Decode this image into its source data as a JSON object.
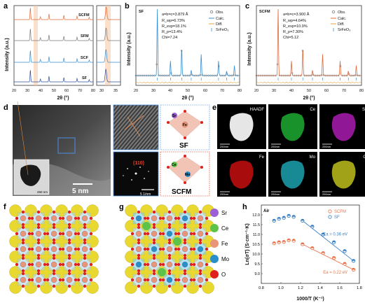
{
  "panel_letters": {
    "a": "a",
    "b": "b",
    "c": "c",
    "d": "d",
    "e": "e",
    "f": "f",
    "g": "g",
    "h": "h"
  },
  "panel_a": {
    "ylabel": "Intensity (a.u.)",
    "xlabel": "2θ (°)",
    "xticks": [
      "20",
      "30",
      "40",
      "50",
      "60",
      "70",
      "80"
    ],
    "xticks_zoom": [
      "30",
      "35"
    ],
    "samples": [
      "SCFM",
      "SFM",
      "SCF",
      "SF"
    ],
    "colors": {
      "SCFM": "#e06a3a",
      "SFM": "#7a7a7a",
      "SCF": "#3a8fd0",
      "SF": "#2c4f9e"
    }
  },
  "panel_b": {
    "tag": "SF",
    "lattice": "a=b=c=3.879 Å",
    "stats": [
      "R_wp=6.73%",
      "R_exp=18.1%",
      "R_p=13.4%",
      "Chi=7.24"
    ],
    "legend": [
      "Obs.",
      "Calc.",
      "Diff.",
      "SrFeO₃"
    ],
    "ylabel": "Intensity (a.u.)",
    "xlabel": "2θ (°)",
    "xticks": [
      "20",
      "30",
      "40",
      "50",
      "60",
      "70",
      "80"
    ]
  },
  "panel_c": {
    "tag": "SCFM",
    "lattice": "a=b=c=3.900 Å",
    "stats": [
      "R_wp=4.64%",
      "R_exp=10.9%",
      "R_p=7.30%",
      "Chi=5.12"
    ],
    "legend": [
      "Obs.",
      "Calc.",
      "Diff.",
      "SrFeO₃"
    ],
    "ylabel": "Intensity (a.u.)",
    "xlabel": "2θ (°)",
    "xticks": [
      "20",
      "30",
      "40",
      "50",
      "60",
      "70",
      "80"
    ]
  },
  "panel_d": {
    "scale_main": "5 nm",
    "scale_inset": "250 nm",
    "scale_fft": "5 1/nm",
    "plane": "(110)",
    "sf_label": "SF",
    "scfm_label": "SCFM",
    "atoms_sf": [
      "Sr",
      "Fe"
    ],
    "atoms_scfm": [
      "Ce",
      "Mo"
    ]
  },
  "panel_e": {
    "maps": [
      {
        "label": "HAADF",
        "scale": "250nm",
        "color": "#ffffff"
      },
      {
        "label": "Ce",
        "scale": "250nm",
        "color": "#22c33a"
      },
      {
        "label": "Sr",
        "scale": "250nm",
        "color": "#c020c8"
      },
      {
        "label": "Fe",
        "scale": "250nm",
        "color": "#e01010"
      },
      {
        "label": "Mo",
        "scale": "250nm",
        "color": "#1fb8c8"
      },
      {
        "label": "O",
        "scale": "250nm",
        "color": "#d8d820"
      }
    ]
  },
  "legend_fg": [
    {
      "label": "Sr",
      "color": "#9b5fd6"
    },
    {
      "label": "Ce",
      "color": "#5cc24a"
    },
    {
      "label": "Fe",
      "color": "#e8957a"
    },
    {
      "label": "Mo",
      "color": "#2a8fc8"
    },
    {
      "label": "O",
      "color": "#e0201c"
    }
  ],
  "chart_data": {
    "type": "scatter",
    "title": "Air",
    "xlabel": "1000/T (K⁻¹)",
    "ylabel": "Ln(σT) (S·cm⁻¹·K)",
    "xlim": [
      0.8,
      1.8
    ],
    "ylim": [
      8.5,
      12.5
    ],
    "xticks": [
      "0.8",
      "1.0",
      "1.2",
      "1.4",
      "1.6",
      "1.8"
    ],
    "yticks": [
      "9.0",
      "9.5",
      "10.0",
      "10.5",
      "11.0",
      "11.5",
      "12.0"
    ],
    "series": [
      {
        "name": "SCFM",
        "color": "#e8734a",
        "x": [
          0.93,
          0.98,
          1.03,
          1.08,
          1.13,
          1.22,
          1.32,
          1.43,
          1.54,
          1.65,
          1.74
        ],
        "y": [
          10.55,
          10.6,
          10.62,
          10.7,
          10.68,
          10.5,
          10.3,
          10.05,
          9.8,
          9.5,
          9.2
        ],
        "fit_label": "Ea = 0.22 eV"
      },
      {
        "name": "SF",
        "color": "#3a7fc4",
        "x": [
          0.93,
          0.98,
          1.03,
          1.08,
          1.13,
          1.22,
          1.32,
          1.43,
          1.54,
          1.65,
          1.74
        ],
        "y": [
          11.7,
          11.8,
          11.85,
          11.95,
          11.9,
          11.7,
          11.4,
          11.0,
          10.6,
          10.15,
          9.65
        ],
        "fit_label": "Ea = 0.36 eV"
      }
    ],
    "legend_position": "top-right",
    "grid": false
  }
}
